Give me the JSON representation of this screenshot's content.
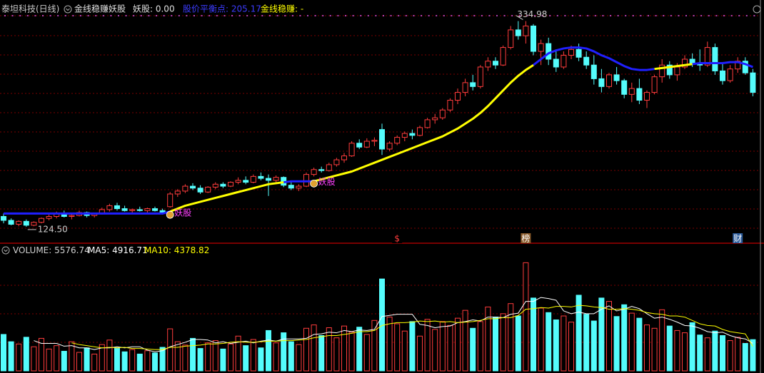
{
  "chart_data": {
    "type": "candlestick",
    "header": {
      "title": "泰坦科技(日线)",
      "indicator": "金线稳赚妖股",
      "signal": "妖股: 0.00",
      "balance": "股价平衡点: 205.17",
      "gold": "金线稳赚: -"
    },
    "ylim": [
      112,
      342
    ],
    "ohlc": [
      [
        135,
        138,
        128,
        131
      ],
      [
        131,
        133,
        126,
        127
      ],
      [
        127,
        131,
        125,
        130
      ],
      [
        130,
        132,
        124.5,
        126
      ],
      [
        126,
        130,
        125,
        129
      ],
      [
        129,
        134,
        128,
        133
      ],
      [
        133,
        137,
        131,
        135
      ],
      [
        135,
        140,
        133,
        138
      ],
      [
        138,
        141,
        134,
        135
      ],
      [
        135,
        138,
        132,
        136
      ],
      [
        136,
        141,
        135,
        139
      ],
      [
        139,
        140,
        134,
        136
      ],
      [
        136,
        139,
        134,
        138
      ],
      [
        138,
        144,
        137,
        142
      ],
      [
        142,
        148,
        140,
        146
      ],
      [
        146,
        149,
        141,
        143
      ],
      [
        143,
        146,
        140,
        141
      ],
      [
        141,
        143,
        138,
        142
      ],
      [
        142,
        145,
        140,
        141
      ],
      [
        141,
        144,
        139,
        143
      ],
      [
        143,
        145,
        140,
        141
      ],
      [
        141,
        143,
        137,
        139
      ],
      [
        145,
        160,
        144,
        158
      ],
      [
        158,
        163,
        155,
        161
      ],
      [
        161,
        168,
        159,
        166
      ],
      [
        166,
        169,
        162,
        164
      ],
      [
        164,
        167,
        158,
        160
      ],
      [
        160,
        166,
        159,
        165
      ],
      [
        165,
        170,
        163,
        168
      ],
      [
        168,
        170,
        164,
        166
      ],
      [
        166,
        171,
        165,
        170
      ],
      [
        170,
        175,
        168,
        172
      ],
      [
        172,
        176,
        168,
        170
      ],
      [
        170,
        178,
        169,
        176
      ],
      [
        176,
        180,
        172,
        174
      ],
      [
        174,
        178,
        156,
        172
      ],
      [
        172,
        177,
        170,
        175
      ],
      [
        175,
        176,
        165,
        167
      ],
      [
        167,
        170,
        162,
        164
      ],
      [
        164,
        168,
        161,
        166
      ],
      [
        166,
        180,
        165,
        178
      ],
      [
        178,
        185,
        176,
        183
      ],
      [
        183,
        186,
        180,
        182
      ],
      [
        182,
        190,
        181,
        188
      ],
      [
        188,
        195,
        186,
        193
      ],
      [
        193,
        200,
        190,
        197
      ],
      [
        197,
        212,
        196,
        210
      ],
      [
        210,
        214,
        204,
        206
      ],
      [
        206,
        215,
        205,
        212
      ],
      [
        212,
        216,
        207,
        213
      ],
      [
        224,
        230,
        198,
        204
      ],
      [
        204,
        212,
        202,
        210
      ],
      [
        210,
        218,
        208,
        216
      ],
      [
        216,
        222,
        212,
        220
      ],
      [
        220,
        224,
        214,
        218
      ],
      [
        218,
        228,
        217,
        226
      ],
      [
        226,
        236,
        225,
        234
      ],
      [
        234,
        240,
        230,
        236
      ],
      [
        236,
        246,
        234,
        244
      ],
      [
        244,
        256,
        242,
        254
      ],
      [
        254,
        266,
        250,
        262
      ],
      [
        262,
        276,
        258,
        272
      ],
      [
        272,
        280,
        264,
        268
      ],
      [
        268,
        290,
        266,
        288
      ],
      [
        288,
        298,
        284,
        294
      ],
      [
        294,
        298,
        286,
        290
      ],
      [
        290,
        310,
        289,
        308
      ],
      [
        308,
        330,
        306,
        326
      ],
      [
        326,
        335,
        316,
        320
      ],
      [
        320,
        334.98,
        312,
        330
      ],
      [
        330,
        332,
        300,
        304
      ],
      [
        304,
        316,
        290,
        312
      ],
      [
        312,
        318,
        290,
        296
      ],
      [
        296,
        306,
        283,
        288
      ],
      [
        288,
        304,
        286,
        300
      ],
      [
        300,
        310,
        296,
        306
      ],
      [
        306,
        312,
        294,
        298
      ],
      [
        298,
        304,
        286,
        290
      ],
      [
        290,
        300,
        270,
        276
      ],
      [
        276,
        286,
        262,
        268
      ],
      [
        268,
        282,
        266,
        280
      ],
      [
        280,
        288,
        270,
        274
      ],
      [
        274,
        276,
        256,
        260
      ],
      [
        260,
        272,
        252,
        266
      ],
      [
        266,
        276,
        250,
        254
      ],
      [
        254,
        264,
        246,
        262
      ],
      [
        262,
        280,
        260,
        278
      ],
      [
        278,
        296,
        272,
        290
      ],
      [
        290,
        294,
        276,
        280
      ],
      [
        280,
        292,
        274,
        288
      ],
      [
        288,
        300,
        286,
        296
      ],
      [
        296,
        302,
        288,
        292
      ],
      [
        292,
        306,
        284,
        290
      ],
      [
        290,
        314,
        288,
        308
      ],
      [
        308,
        312,
        280,
        284
      ],
      [
        284,
        292,
        270,
        274
      ],
      [
        274,
        290,
        272,
        286
      ],
      [
        286,
        298,
        282,
        294
      ],
      [
        294,
        298,
        280,
        282
      ],
      [
        282,
        286,
        258,
        262
      ]
    ],
    "extreme_labels": {
      "high": "334.98",
      "low": "124.50"
    },
    "lines": [
      {
        "color": "#2020ff",
        "values": [
          138,
          138,
          138,
          138,
          138,
          138,
          138,
          138,
          138,
          138,
          138,
          138,
          138,
          138,
          138,
          138,
          138,
          138,
          138,
          138,
          138,
          138,
          140,
          null,
          null,
          null,
          null,
          null,
          null,
          null,
          null,
          null,
          null,
          null,
          null,
          null,
          null,
          170,
          171,
          171,
          171,
          171,
          null,
          null,
          null,
          null,
          null,
          null,
          null,
          null,
          null,
          null,
          null,
          null,
          null,
          null,
          null,
          null,
          null,
          null,
          null,
          null,
          null,
          null,
          null,
          null,
          null,
          null,
          null,
          null,
          290,
          296,
          302,
          305,
          307,
          308,
          308,
          307,
          304,
          300,
          297,
          293,
          289,
          286,
          285,
          285,
          286,
          null,
          null,
          null,
          null,
          291,
          292,
          292,
          292,
          292,
          293,
          293,
          291,
          288
        ]
      },
      {
        "color": "#ffff00",
        "values": [
          null,
          null,
          null,
          null,
          null,
          null,
          null,
          null,
          null,
          null,
          null,
          null,
          null,
          null,
          null,
          null,
          null,
          null,
          null,
          null,
          null,
          null,
          140,
          143,
          146,
          148,
          150,
          152,
          154,
          156,
          158,
          160,
          162,
          164,
          166,
          168,
          169,
          170,
          null,
          null,
          null,
          171,
          173,
          175,
          177,
          179,
          181,
          184,
          187,
          190,
          193,
          196,
          199,
          202,
          205,
          208,
          211,
          214,
          217,
          221,
          225,
          230,
          235,
          241,
          248,
          256,
          264,
          272,
          279,
          285,
          290,
          null,
          null,
          null,
          null,
          null,
          null,
          null,
          null,
          null,
          null,
          null,
          null,
          null,
          null,
          null,
          286,
          287,
          288,
          289,
          290,
          291,
          null,
          null,
          null,
          null,
          null,
          null,
          null,
          null
        ]
      }
    ],
    "signals": [
      "妖股",
      "妖股"
    ],
    "events": [
      "$",
      "榜",
      "财"
    ],
    "volume": {
      "label": "VOLUME:",
      "ylim": [
        0,
        21000
      ],
      "values": [
        6500,
        5200,
        4800,
        6000,
        4300,
        5800,
        3900,
        4500,
        3500,
        5200,
        3300,
        4100,
        3000,
        4700,
        5500,
        4000,
        3400,
        3800,
        3000,
        3600,
        3200,
        4200,
        7500,
        5200,
        4600,
        5800,
        4000,
        5000,
        5400,
        3900,
        4800,
        6200,
        4500,
        5600,
        4100,
        7200,
        5000,
        6800,
        5200,
        4700,
        7600,
        8200,
        6300,
        7700,
        5900,
        8000,
        6900,
        7800,
        6500,
        9000,
        16400,
        9600,
        8400,
        7100,
        8800,
        6200,
        9200,
        7400,
        8800,
        8100,
        9400,
        10800,
        7600,
        8800,
        11400,
        9600,
        10200,
        12000,
        9800,
        19300,
        13000,
        11200,
        10400,
        9100,
        9800,
        8700,
        13500,
        10100,
        8900,
        13000,
        12400,
        9700,
        11800,
        10300,
        9400,
        8200,
        7600,
        10900,
        8000,
        7200,
        6800,
        8600,
        6400,
        5900,
        7100,
        6300,
        5400,
        6000,
        4900,
        5576.74
      ],
      "series": [
        {
          "name": "MA5:",
          "color": "#ffffff",
          "values": [
            null,
            null,
            null,
            null,
            5400,
            4900,
            4900,
            4900,
            4400,
            4500,
            4100,
            4100,
            3800,
            4100,
            4100,
            4300,
            4100,
            4300,
            4300,
            3700,
            3400,
            3600,
            4300,
            4700,
            5100,
            5600,
            5600,
            5500,
            5000,
            5200,
            4900,
            5100,
            5300,
            5000,
            5300,
            5500,
            5300,
            5700,
            5700,
            5700,
            5800,
            6500,
            6600,
            6900,
            6800,
            7200,
            7000,
            7300,
            7200,
            7400,
            9700,
            9900,
            10100,
            10100,
            10100,
            8300,
            8100,
            7700,
            7900,
            8000,
            8600,
            8800,
            9100,
            8900,
            9600,
            9600,
            9500,
            10100,
            10300,
            12400,
            12400,
            13100,
            12900,
            12600,
            10700,
            10200,
            10500,
            10200,
            10200,
            11000,
            11600,
            10700,
            11000,
            11500,
            11100,
            10200,
            9400,
            9600,
            9200,
            8700,
            8100,
            8000,
            7600,
            7000,
            6800,
            6900,
            6300,
            5900,
            5700,
            4916.71
          ]
        },
        {
          "name": "MA10:",
          "color": "#ffff00",
          "values": [
            null,
            null,
            null,
            null,
            null,
            null,
            null,
            null,
            null,
            5000,
            4700,
            4500,
            4300,
            4100,
            4200,
            4100,
            4200,
            4000,
            4000,
            3900,
            3800,
            3800,
            4200,
            4200,
            4400,
            4500,
            4600,
            4800,
            4800,
            4900,
            5100,
            5200,
            5100,
            5100,
            5200,
            5300,
            5300,
            5400,
            5400,
            5500,
            5600,
            5900,
            6100,
            6300,
            6300,
            6500,
            6700,
            7000,
            7000,
            7200,
            8100,
            8400,
            8600,
            8600,
            8700,
            8900,
            8800,
            8900,
            8700,
            8800,
            8600,
            8700,
            8800,
            9000,
            9300,
            9300,
            9500,
            9500,
            9900,
            11000,
            11100,
            11300,
            11200,
            11500,
            11500,
            11400,
            11700,
            11600,
            11400,
            11300,
            11000,
            11000,
            11100,
            11000,
            10800,
            10400,
            10200,
            10100,
            9800,
            9800,
            9600,
            9000,
            8400,
            8100,
            8000,
            7400,
            7000,
            6800,
            6600,
            4378.82
          ]
        }
      ]
    },
    "up_color": "#ff3c3c",
    "down_color": "#54fcfc"
  }
}
